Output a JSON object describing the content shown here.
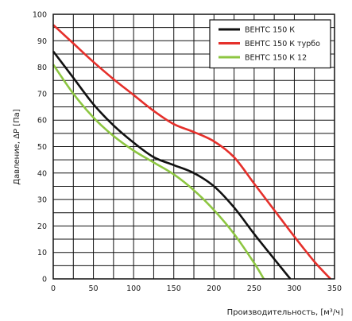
{
  "chart_data": {
    "type": "line",
    "title": "",
    "xlabel": "Производительность, [м³/ч]",
    "ylabel": "Давление, ΔP [Па]",
    "xlim": [
      0,
      350
    ],
    "ylim": [
      0,
      100
    ],
    "x_ticks": [
      "0",
      "50",
      "100",
      "150",
      "200",
      "250",
      "300",
      "350"
    ],
    "y_ticks": [
      "0",
      "10",
      "20",
      "30",
      "40",
      "50",
      "60",
      "70",
      "80",
      "90",
      "100"
    ],
    "grid": true,
    "legend_position": "top-right",
    "series": [
      {
        "name": "ВЕНТС 150 К",
        "color": "#111111",
        "points": [
          [
            0,
            86
          ],
          [
            25,
            76
          ],
          [
            50,
            66
          ],
          [
            75,
            58
          ],
          [
            100,
            51.5
          ],
          [
            125,
            46
          ],
          [
            150,
            43
          ],
          [
            175,
            40
          ],
          [
            200,
            35
          ],
          [
            225,
            27
          ],
          [
            250,
            17
          ],
          [
            275,
            7.5
          ],
          [
            295,
            0
          ]
        ]
      },
      {
        "name": "ВЕНТС 150 К турбо",
        "color": "#e5302b",
        "points": [
          [
            0,
            96
          ],
          [
            25,
            89
          ],
          [
            50,
            82
          ],
          [
            75,
            75.5
          ],
          [
            100,
            69.5
          ],
          [
            125,
            63.5
          ],
          [
            150,
            58.5
          ],
          [
            175,
            55.5
          ],
          [
            200,
            52
          ],
          [
            225,
            46
          ],
          [
            250,
            36
          ],
          [
            275,
            26
          ],
          [
            300,
            16
          ],
          [
            325,
            6.5
          ],
          [
            345,
            0
          ]
        ]
      },
      {
        "name": "ВЕНТС 150 К 12",
        "color": "#8dc641",
        "points": [
          [
            0,
            81
          ],
          [
            25,
            70
          ],
          [
            50,
            61
          ],
          [
            75,
            54
          ],
          [
            100,
            48.5
          ],
          [
            125,
            44
          ],
          [
            150,
            39.5
          ],
          [
            175,
            33.5
          ],
          [
            200,
            26
          ],
          [
            225,
            17
          ],
          [
            250,
            6
          ],
          [
            262,
            0
          ]
        ]
      }
    ]
  }
}
